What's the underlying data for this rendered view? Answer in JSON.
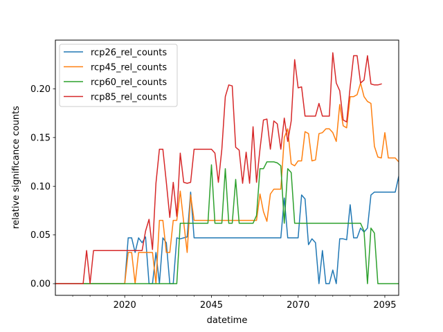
{
  "chart_data": {
    "type": "line",
    "xlabel": "datetime",
    "ylabel": "relative significance counts",
    "xlim": [
      2000,
      2099
    ],
    "ylim": [
      -0.012,
      0.25
    ],
    "x_ticks": [
      {
        "value": 2020,
        "label": "2020"
      },
      {
        "value": 2045,
        "label": "2045"
      },
      {
        "value": 2070,
        "label": "2070"
      },
      {
        "value": 2095,
        "label": "2095"
      }
    ],
    "x_minor_ticks": [
      2005,
      2010,
      2015,
      2025,
      2030,
      2035,
      2040,
      2050,
      2055,
      2060,
      2065,
      2075,
      2080,
      2085,
      2090
    ],
    "y_ticks": [
      {
        "value": 0.0,
        "label": "0.00"
      },
      {
        "value": 0.05,
        "label": "0.05"
      },
      {
        "value": 0.1,
        "label": "0.10"
      },
      {
        "value": 0.15,
        "label": "0.15"
      },
      {
        "value": 0.2,
        "label": "0.20"
      }
    ],
    "legend_position": "top-left",
    "grid": false,
    "series": [
      {
        "name": "rcp26_rel_counts",
        "color": "#1f77b4",
        "points": [
          [
            2000,
            0
          ],
          [
            2007,
            0
          ],
          [
            2008,
            0
          ],
          [
            2020,
            0
          ],
          [
            2021,
            0.047
          ],
          [
            2022,
            0.047
          ],
          [
            2023,
            0.032
          ],
          [
            2024,
            0.047
          ],
          [
            2025,
            0.042
          ],
          [
            2026,
            0.048
          ],
          [
            2027,
            0
          ],
          [
            2028,
            0
          ],
          [
            2029,
            0.032
          ],
          [
            2030,
            0
          ],
          [
            2031,
            0.047
          ],
          [
            2032,
            0.042
          ],
          [
            2033,
            0
          ],
          [
            2034,
            0
          ],
          [
            2035,
            0.047
          ],
          [
            2036,
            0.046
          ],
          [
            2037,
            0.047
          ],
          [
            2038,
            0.048
          ],
          [
            2039,
            0.094
          ],
          [
            2040,
            0.047
          ],
          [
            2045,
            0.047
          ],
          [
            2050,
            0.047
          ],
          [
            2055,
            0.047
          ],
          [
            2060,
            0.047
          ],
          [
            2063,
            0.047
          ],
          [
            2064,
            0.047
          ],
          [
            2065,
            0.047
          ],
          [
            2066,
            0.088
          ],
          [
            2067,
            0.047
          ],
          [
            2068,
            0.047
          ],
          [
            2069,
            0.047
          ],
          [
            2070,
            0.047
          ],
          [
            2071,
            0.091
          ],
          [
            2072,
            0.087
          ],
          [
            2073,
            0.04
          ],
          [
            2074,
            0.046
          ],
          [
            2075,
            0.042
          ],
          [
            2076,
            0
          ],
          [
            2077,
            0.034
          ],
          [
            2078,
            0
          ],
          [
            2079,
            0
          ],
          [
            2080,
            0.014
          ],
          [
            2081,
            0
          ],
          [
            2082,
            0.046
          ],
          [
            2083,
            0.046
          ],
          [
            2084,
            0.045
          ],
          [
            2085,
            0.081
          ],
          [
            2086,
            0.047
          ],
          [
            2087,
            0.047
          ],
          [
            2088,
            0.057
          ],
          [
            2089,
            0.053
          ],
          [
            2090,
            0.057
          ],
          [
            2091,
            0.091
          ],
          [
            2092,
            0.094
          ],
          [
            2093,
            0.094
          ],
          [
            2095,
            0.094
          ],
          [
            2097,
            0.094
          ],
          [
            2098,
            0.094
          ],
          [
            2099,
            0.11
          ]
        ]
      },
      {
        "name": "rcp45_rel_counts",
        "color": "#ff7f0e",
        "points": [
          [
            2000,
            0
          ],
          [
            2020,
            0
          ],
          [
            2021,
            0.032
          ],
          [
            2022,
            0.032
          ],
          [
            2023,
            0
          ],
          [
            2024,
            0.032
          ],
          [
            2025,
            0.032
          ],
          [
            2028,
            0.032
          ],
          [
            2029,
            0
          ],
          [
            2030,
            0.065
          ],
          [
            2031,
            0.065
          ],
          [
            2032,
            0.032
          ],
          [
            2033,
            0.032
          ],
          [
            2034,
            0.065
          ],
          [
            2035,
            0.065
          ],
          [
            2036,
            0.095
          ],
          [
            2037,
            0.063
          ],
          [
            2038,
            0.032
          ],
          [
            2039,
            0.091
          ],
          [
            2040,
            0.065
          ],
          [
            2045,
            0.065
          ],
          [
            2050,
            0.065
          ],
          [
            2055,
            0.065
          ],
          [
            2058,
            0.065
          ],
          [
            2059,
            0.092
          ],
          [
            2060,
            0.074
          ],
          [
            2061,
            0.064
          ],
          [
            2062,
            0.092
          ],
          [
            2063,
            0.097
          ],
          [
            2064,
            0.097
          ],
          [
            2065,
            0.097
          ],
          [
            2066,
            0.15
          ],
          [
            2067,
            0.159
          ],
          [
            2068,
            0.123
          ],
          [
            2069,
            0.121
          ],
          [
            2070,
            0.126
          ],
          [
            2071,
            0.126
          ],
          [
            2072,
            0.156
          ],
          [
            2073,
            0.154
          ],
          [
            2074,
            0.126
          ],
          [
            2075,
            0.127
          ],
          [
            2076,
            0.154
          ],
          [
            2077,
            0.155
          ],
          [
            2078,
            0.159
          ],
          [
            2079,
            0.159
          ],
          [
            2080,
            0.155
          ],
          [
            2081,
            0.146
          ],
          [
            2082,
            0.184
          ],
          [
            2083,
            0.162
          ],
          [
            2084,
            0.16
          ],
          [
            2085,
            0.192
          ],
          [
            2086,
            0.192
          ],
          [
            2087,
            0.194
          ],
          [
            2088,
            0.206
          ],
          [
            2089,
            0.192
          ],
          [
            2090,
            0.187
          ],
          [
            2091,
            0.185
          ],
          [
            2092,
            0.141
          ],
          [
            2093,
            0.13
          ],
          [
            2094,
            0.129
          ],
          [
            2095,
            0.155
          ],
          [
            2096,
            0.129
          ],
          [
            2097,
            0.129
          ],
          [
            2098,
            0.129
          ],
          [
            2099,
            0.125
          ]
        ]
      },
      {
        "name": "rcp60_rel_counts",
        "color": "#2ca02c",
        "points": [
          [
            2000,
            0
          ],
          [
            2035,
            0
          ],
          [
            2036,
            0.062
          ],
          [
            2044,
            0.062
          ],
          [
            2045,
            0.122
          ],
          [
            2046,
            0.062
          ],
          [
            2048,
            0.062
          ],
          [
            2049,
            0.118
          ],
          [
            2050,
            0.062
          ],
          [
            2051,
            0.062
          ],
          [
            2052,
            0.107
          ],
          [
            2053,
            0.062
          ],
          [
            2057,
            0.062
          ],
          [
            2058,
            0.07
          ],
          [
            2059,
            0.118
          ],
          [
            2060,
            0.118
          ],
          [
            2061,
            0.125
          ],
          [
            2062,
            0.125
          ],
          [
            2063,
            0.125
          ],
          [
            2064,
            0.124
          ],
          [
            2065,
            0.121
          ],
          [
            2066,
            0.062
          ],
          [
            2067,
            0.118
          ],
          [
            2068,
            0.114
          ],
          [
            2069,
            0.062
          ],
          [
            2088,
            0.062
          ],
          [
            2089,
            0.054
          ],
          [
            2090,
            0
          ],
          [
            2091,
            0.057
          ],
          [
            2092,
            0.052
          ],
          [
            2093,
            0
          ],
          [
            2099,
            0
          ]
        ]
      },
      {
        "name": "rcp85_rel_counts",
        "color": "#d62728",
        "points": [
          [
            2000,
            0
          ],
          [
            2008,
            0
          ],
          [
            2009,
            0.034
          ],
          [
            2010,
            0
          ],
          [
            2011,
            0.034
          ],
          [
            2015,
            0.034
          ],
          [
            2020,
            0.034
          ],
          [
            2025,
            0.034
          ],
          [
            2026,
            0.054
          ],
          [
            2027,
            0.066
          ],
          [
            2028,
            0.035
          ],
          [
            2029,
            0.103
          ],
          [
            2030,
            0.138
          ],
          [
            2031,
            0.138
          ],
          [
            2032,
            0.104
          ],
          [
            2033,
            0.068
          ],
          [
            2034,
            0.104
          ],
          [
            2035,
            0.069
          ],
          [
            2036,
            0.134
          ],
          [
            2037,
            0.104
          ],
          [
            2038,
            0.103
          ],
          [
            2039,
            0.104
          ],
          [
            2040,
            0.138
          ],
          [
            2044,
            0.138
          ],
          [
            2045,
            0.138
          ],
          [
            2046,
            0.134
          ],
          [
            2047,
            0.104
          ],
          [
            2048,
            0.138
          ],
          [
            2049,
            0.192
          ],
          [
            2050,
            0.204
          ],
          [
            2051,
            0.203
          ],
          [
            2052,
            0.14
          ],
          [
            2053,
            0.137
          ],
          [
            2054,
            0.103
          ],
          [
            2055,
            0.135
          ],
          [
            2056,
            0.103
          ],
          [
            2057,
            0.161
          ],
          [
            2058,
            0.104
          ],
          [
            2059,
            0.138
          ],
          [
            2060,
            0.168
          ],
          [
            2061,
            0.169
          ],
          [
            2062,
            0.138
          ],
          [
            2063,
            0.167
          ],
          [
            2064,
            0.164
          ],
          [
            2065,
            0.138
          ],
          [
            2066,
            0.17
          ],
          [
            2067,
            0.146
          ],
          [
            2068,
            0.167
          ],
          [
            2069,
            0.23
          ],
          [
            2070,
            0.201
          ],
          [
            2071,
            0.202
          ],
          [
            2072,
            0.172
          ],
          [
            2073,
            0.172
          ],
          [
            2074,
            0.172
          ],
          [
            2075,
            0.172
          ],
          [
            2076,
            0.185
          ],
          [
            2077,
            0.172
          ],
          [
            2078,
            0.172
          ],
          [
            2079,
            0.172
          ],
          [
            2080,
            0.237
          ],
          [
            2081,
            0.206
          ],
          [
            2082,
            0.198
          ],
          [
            2083,
            0.168
          ],
          [
            2084,
            0.166
          ],
          [
            2085,
            0.202
          ],
          [
            2086,
            0.234
          ],
          [
            2087,
            0.234
          ],
          [
            2088,
            0.206
          ],
          [
            2089,
            0.209
          ],
          [
            2090,
            0.234
          ],
          [
            2091,
            0.205
          ],
          [
            2092,
            0.204
          ],
          [
            2093,
            0.204
          ],
          [
            2094,
            0.205
          ]
        ]
      }
    ]
  }
}
